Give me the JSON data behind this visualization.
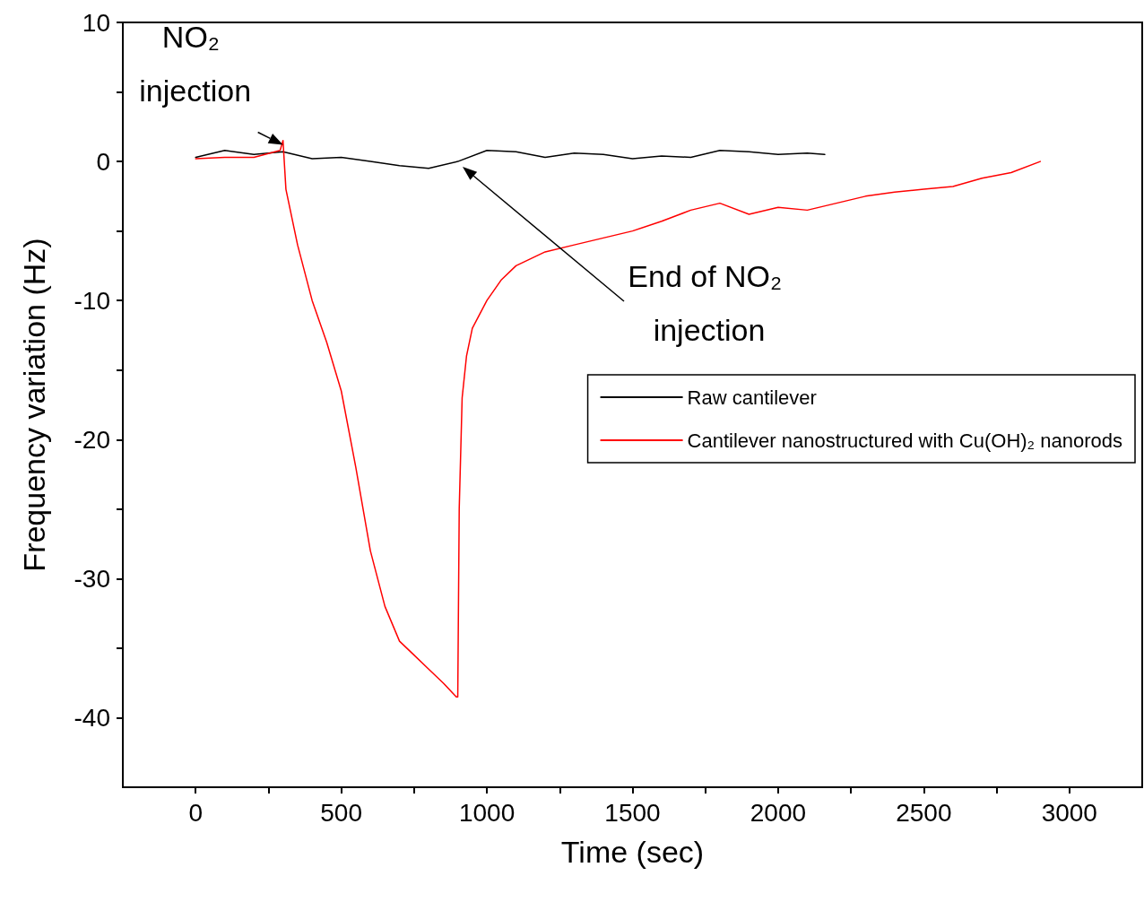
{
  "chart_data": {
    "type": "line",
    "xlabel": "Time (sec)",
    "ylabel": "Frequency variation (Hz)",
    "xlim": [
      -250,
      3250
    ],
    "xticks": [
      0,
      500,
      1000,
      1500,
      2000,
      2500,
      3000,
      {
        "value": 250,
        "label": null
      },
      {
        "value": 750,
        "label": null
      },
      {
        "value": 1250,
        "label": null
      },
      {
        "value": 1750,
        "label": null
      },
      {
        "value": 2250,
        "label": null
      },
      {
        "value": 2750,
        "label": null
      }
    ],
    "ylim": [
      -45,
      10
    ],
    "yticks": [
      -40,
      -30,
      -20,
      -10,
      0,
      10,
      {
        "value": -35,
        "label": null
      },
      {
        "value": -25,
        "label": null
      },
      {
        "value": -15,
        "label": null
      },
      {
        "value": -5,
        "label": null
      },
      {
        "value": 5,
        "label": null
      }
    ],
    "grid": false,
    "legend": "right",
    "marker": "none",
    "line_style": "solid",
    "series": [
      {
        "name": "Raw cantilever",
        "color": "#000000",
        "x": [
          0,
          100,
          200,
          300,
          400,
          500,
          600,
          700,
          800,
          900,
          1000,
          1100,
          1200,
          1300,
          1400,
          1500,
          1600,
          1700,
          1800,
          1900,
          2000,
          2100,
          2160
        ],
        "values": [
          0.3,
          0.8,
          0.5,
          0.7,
          0.2,
          0.3,
          0,
          -0.3,
          -0.5,
          0,
          0.8,
          0.7,
          0.3,
          0.6,
          0.5,
          0.2,
          0.4,
          0.3,
          0.8,
          0.7,
          0.5,
          0.6,
          0.5
        ]
      },
      {
        "name": "Cantilever nanostructured with Cu(OH)₂ nanorods",
        "color": "#ff0000",
        "x": [
          0,
          100,
          200,
          290,
          300,
          310,
          350,
          400,
          450,
          500,
          550,
          600,
          650,
          700,
          750,
          800,
          850,
          895,
          900,
          905,
          915,
          930,
          950,
          1000,
          1050,
          1100,
          1150,
          1200,
          1300,
          1400,
          1500,
          1600,
          1700,
          1800,
          1900,
          2000,
          2100,
          2200,
          2300,
          2400,
          2500,
          2600,
          2700,
          2800,
          2900
        ],
        "values": [
          0.2,
          0.3,
          0.3,
          0.8,
          1.5,
          -2,
          -6,
          -10,
          -13,
          -16.5,
          -22,
          -28,
          -32,
          -34.5,
          -35.5,
          -36.5,
          -37.5,
          -38.5,
          -38.5,
          -25,
          -17,
          -14,
          -12,
          -10,
          -8.5,
          -7.5,
          -7,
          -6.5,
          -6,
          -5.5,
          -5,
          -4.3,
          -3.5,
          -3,
          -3.8,
          -3.3,
          -3.5,
          -3,
          -2.5,
          -2.2,
          -2,
          -1.8,
          -1.2,
          -0.8,
          0
        ]
      }
    ],
    "annotations": [
      {
        "text": "NO₂ injection",
        "x": 300,
        "y": 1.2
      },
      "End of NO₂ injection"
    ]
  }
}
